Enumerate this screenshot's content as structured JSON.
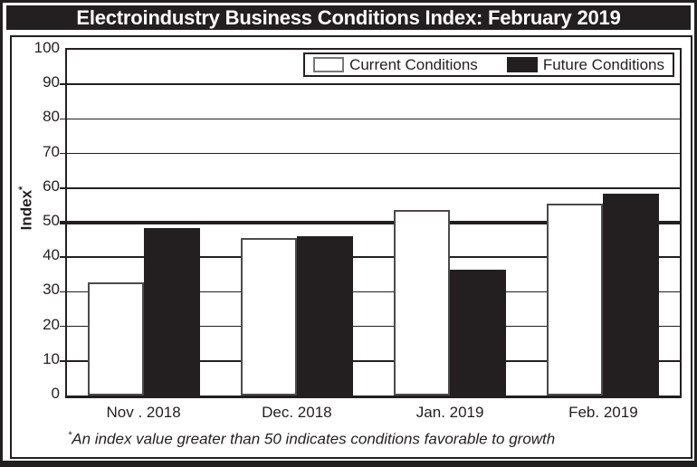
{
  "title": "Electroindustry Business Conditions Index: February 2019",
  "colors": {
    "ink": "#231f20",
    "paper": "#ffffff",
    "current_fill": "#ffffff",
    "future_fill": "#231f20",
    "bar_stroke": "#4c4a4b"
  },
  "legend": {
    "items": [
      {
        "label": "Current Conditions",
        "swatch": "white"
      },
      {
        "label": "Future Conditions",
        "swatch": "black"
      }
    ]
  },
  "y_axis": {
    "label": "Index",
    "label_superscript": "*",
    "ticks": [
      0,
      10,
      20,
      30,
      40,
      50,
      60,
      70,
      80,
      90,
      100
    ],
    "min": 0,
    "max": 100
  },
  "footnote": {
    "superscript": "*",
    "text": "An index value greater than 50 indicates conditions favorable to growth"
  },
  "chart_data": {
    "type": "bar",
    "title": "Electroindustry Business Conditions Index: February 2019",
    "categories": [
      "Nov . 2018",
      "Dec. 2018",
      "Jan. 2019",
      "Feb. 2019"
    ],
    "series": [
      {
        "name": "Current Conditions",
        "fill": "#ffffff",
        "values": [
          32.6,
          45.5,
          53.6,
          55.6
        ]
      },
      {
        "name": "Future Conditions",
        "fill": "#231f20",
        "values": [
          48.4,
          46.2,
          36.4,
          58.3
        ]
      }
    ],
    "xlabel": "",
    "ylabel": "Index*",
    "ylim": [
      0,
      100
    ],
    "grid": true,
    "reference_line": 50,
    "legend_position": "top-right"
  }
}
